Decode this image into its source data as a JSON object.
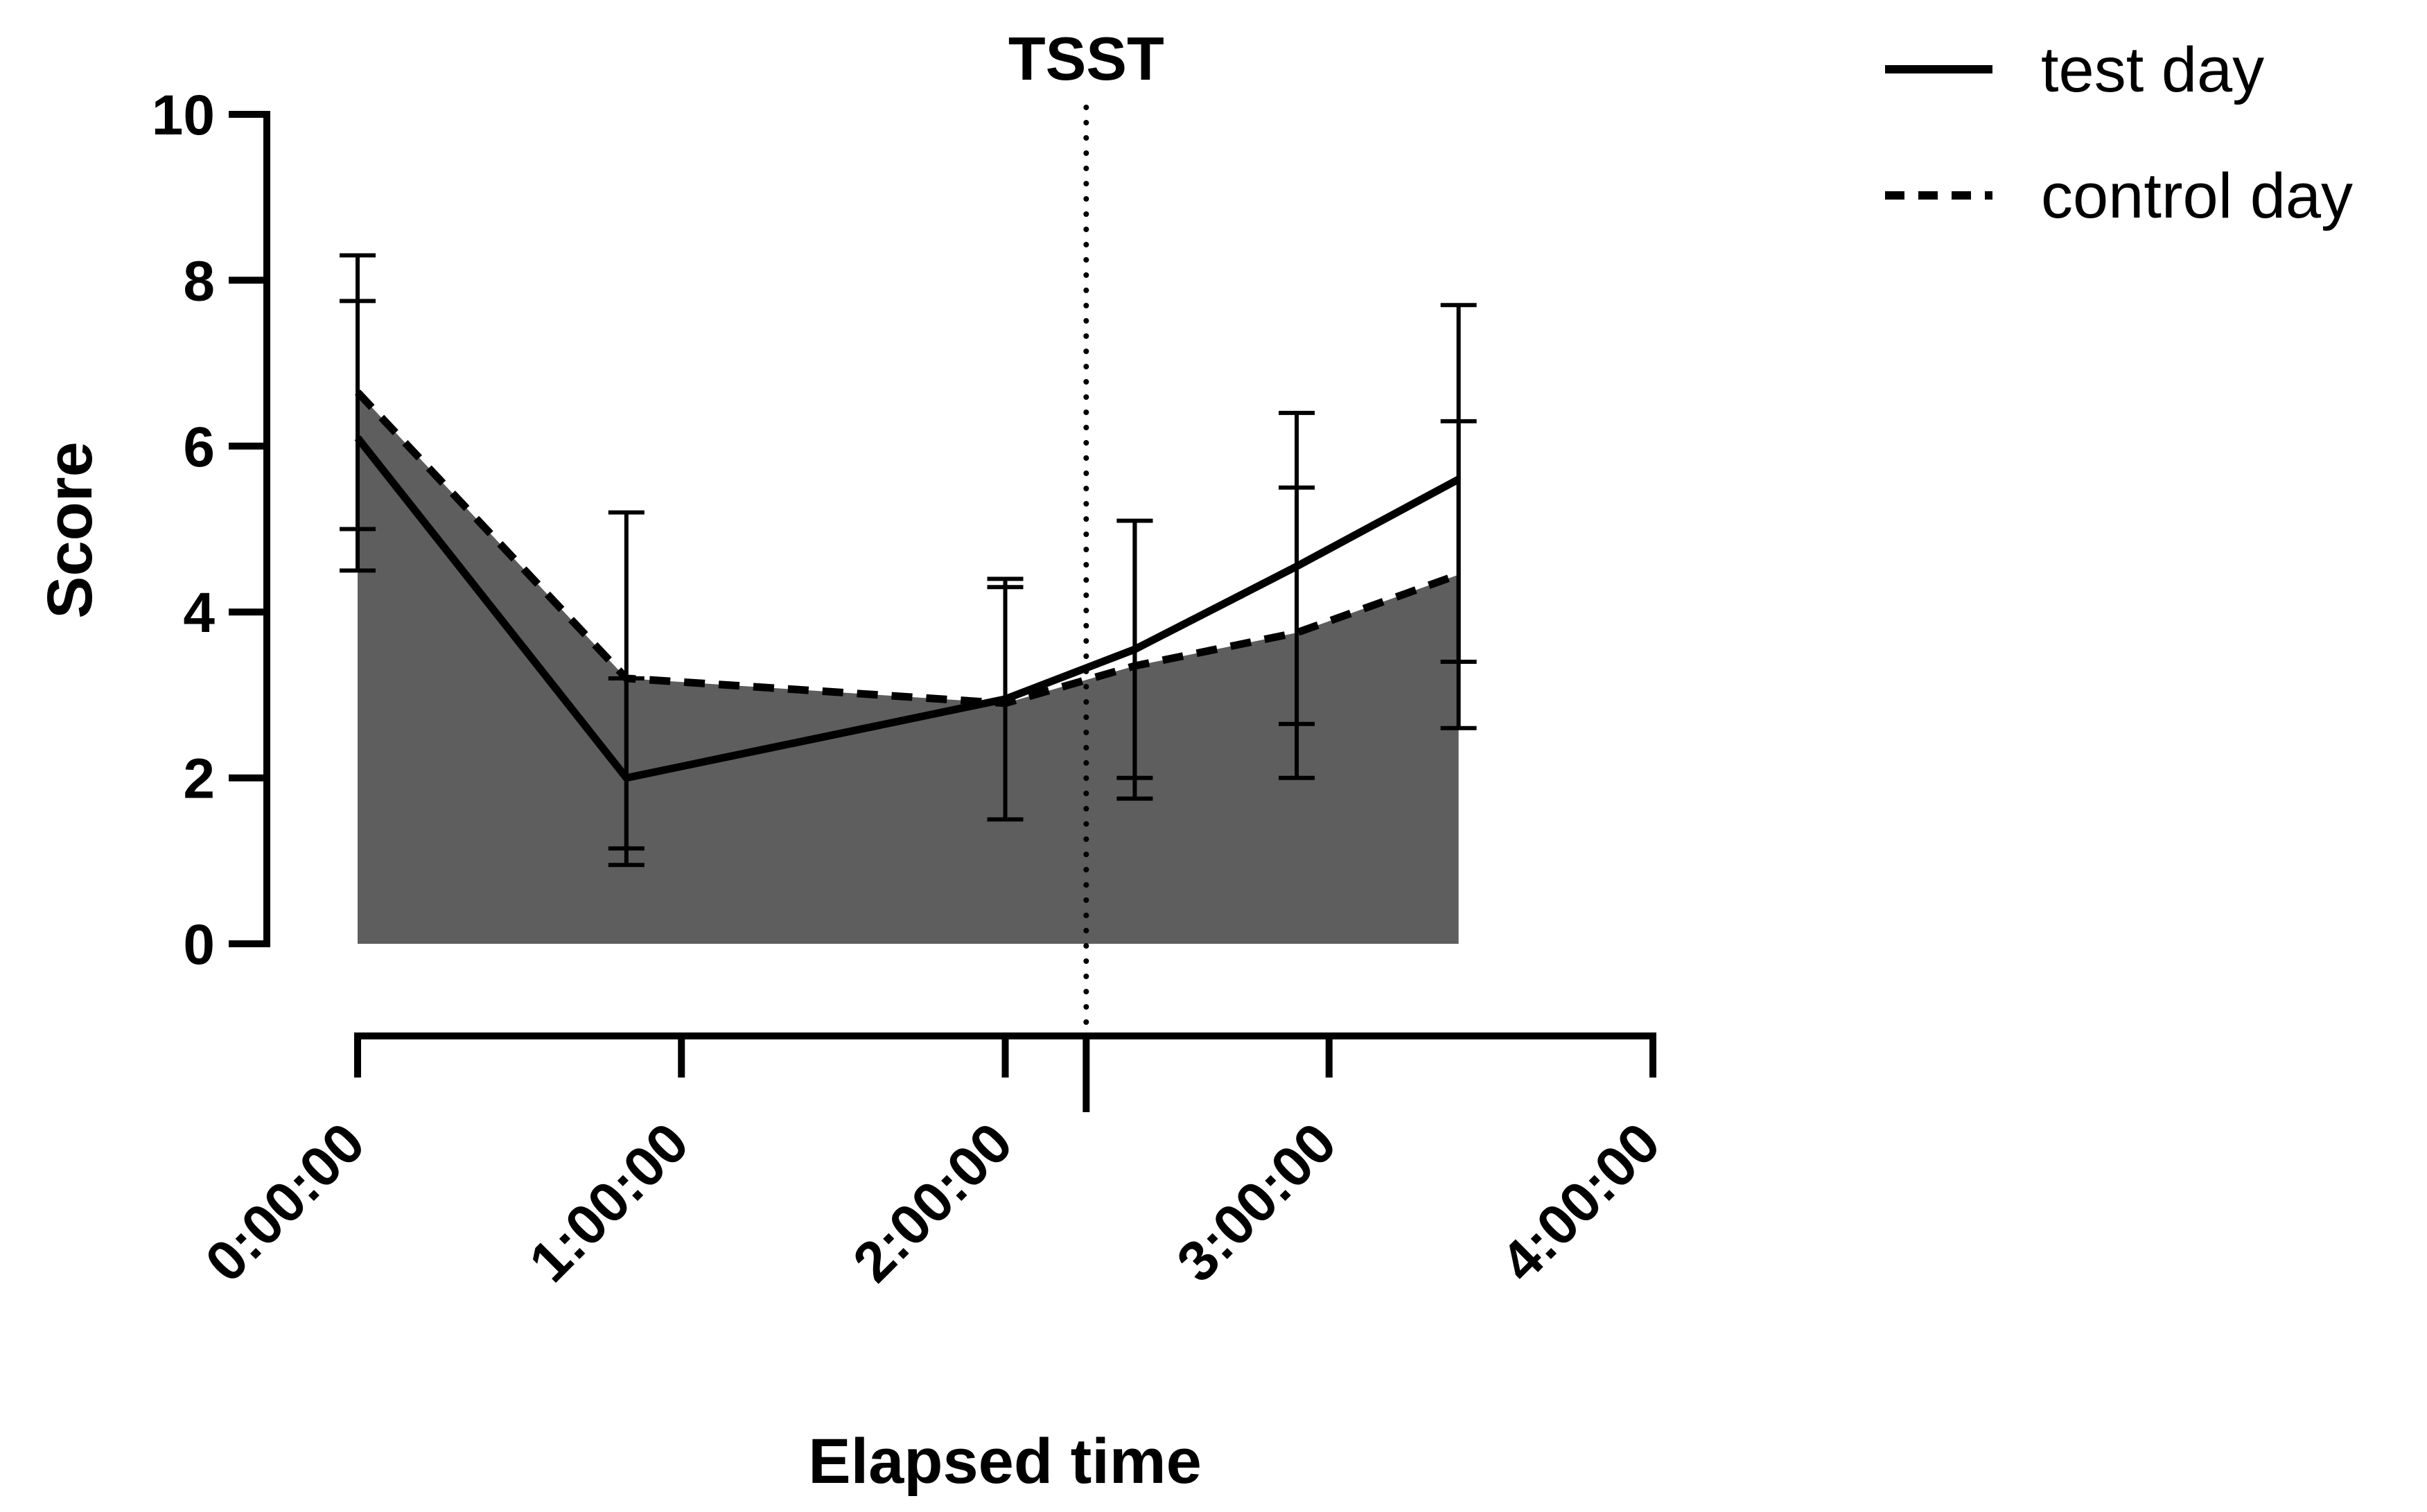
{
  "chart_data": {
    "type": "line",
    "title": "",
    "xlabel": "Elapsed time",
    "ylabel": "Score",
    "ylim": [
      0,
      10
    ],
    "yticks": [
      "0",
      "2",
      "4",
      "6",
      "8",
      "10"
    ],
    "xlim_hours": [
      0,
      4
    ],
    "xtick_labels": [
      "0:00:00",
      "1:00:00",
      "2:00:00",
      "3:00:00",
      "4:00:00"
    ],
    "annotation": {
      "label": "TSST",
      "x_hours": 2.25
    },
    "legend_position": "top-right",
    "series": [
      {
        "name": "test day",
        "style": "solid",
        "x_hours": [
          0,
          0.83,
          2.0,
          2.4,
          2.9,
          3.4
        ],
        "values": [
          6.1,
          2.0,
          2.95,
          3.55,
          4.55,
          5.6
        ],
        "error_upper": [
          7.75,
          5.2,
          4.3,
          5.1,
          5.5,
          7.7
        ],
        "error_lower": [
          4.5,
          1.15,
          1.5,
          2.0,
          2.65,
          3.4
        ]
      },
      {
        "name": "control day",
        "style": "dashed",
        "fill": true,
        "x_hours": [
          0,
          0.83,
          2.0,
          2.4,
          2.9,
          3.4
        ],
        "values": [
          6.65,
          3.2,
          2.9,
          3.35,
          3.75,
          4.45
        ],
        "error_upper": [
          8.3,
          3.2,
          4.4,
          5.1,
          6.4,
          6.3
        ],
        "error_lower": [
          5.0,
          0.95,
          1.5,
          1.75,
          2.0,
          2.6
        ]
      }
    ],
    "colors": {
      "line": "#000000",
      "fill": "#5e5e5e"
    }
  }
}
